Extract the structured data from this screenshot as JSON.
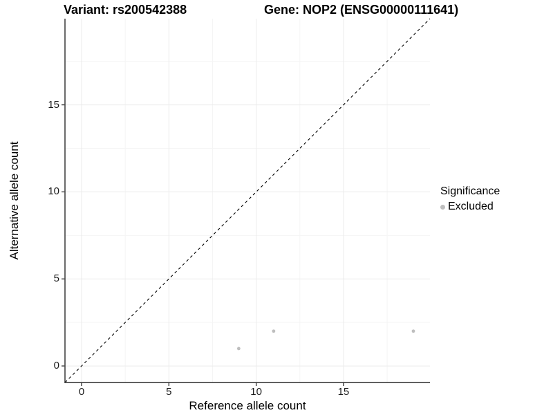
{
  "titles": {
    "variant": "Variant: rs200542388",
    "gene": "Gene: NOP2 (ENSG00000111641)"
  },
  "chart_data": {
    "type": "scatter",
    "xlabel": "Reference allele count",
    "ylabel": "Alternative allele count",
    "xlim": [
      -0.95,
      19.95
    ],
    "ylim": [
      -0.95,
      19.95
    ],
    "x_major_ticks": [
      0,
      5,
      10,
      15
    ],
    "y_major_ticks": [
      0,
      5,
      10,
      15
    ],
    "x_minor_ticks": [
      2.5,
      7.5,
      12.5,
      17.5
    ],
    "y_minor_ticks": [
      2.5,
      7.5,
      12.5,
      17.5
    ],
    "grid": true,
    "identity_line": {
      "style": "dashed",
      "from": -0.95,
      "to": 19.95,
      "color": "#000000"
    },
    "series": [
      {
        "name": "Excluded",
        "color": "#bebebe",
        "points": [
          {
            "x": 9,
            "y": 1
          },
          {
            "x": 11,
            "y": 2
          },
          {
            "x": 19,
            "y": 2
          }
        ]
      }
    ],
    "legend": {
      "title": "Significance",
      "position": "right",
      "items": [
        {
          "label": "Excluded",
          "color": "#bebebe"
        }
      ]
    },
    "colors": {
      "background": "#ffffff",
      "grid_major": "#ebebeb",
      "grid_minor": "#f5f5f5",
      "axis_line": "#2b2b2b",
      "tick_mark": "#2b2b2b",
      "point": "#bebebe"
    }
  }
}
